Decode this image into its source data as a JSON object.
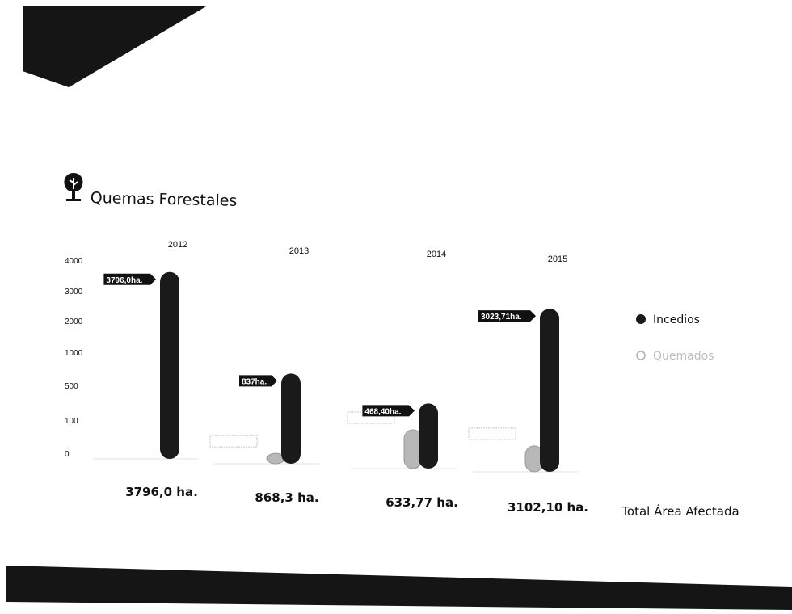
{
  "page": {
    "title": "",
    "chart_title": "Quemas Forestales",
    "tree_icon": "tree-icon",
    "colors": {
      "dark_band": "#151515",
      "background": "#ffffff"
    }
  },
  "chart_data": {
    "type": "bar",
    "title": "Quemas Forestales",
    "categories": [
      "2012",
      "2013",
      "2014",
      "2015"
    ],
    "y_ticks": [
      "4000",
      "3000",
      "2000",
      "1000",
      "500",
      "100",
      "0"
    ],
    "series": [
      {
        "name": "Incedios",
        "color": "#1a1a1a",
        "values": [
          3796.0,
          837,
          468.4,
          3023.71
        ],
        "labels": [
          "3796,0ha.",
          "837ha.",
          "468,40ha.",
          "3023,71ha."
        ]
      },
      {
        "name": "Quemados",
        "color": "#b8b8b8",
        "values": [
          0,
          31.3,
          165.37,
          78.39
        ],
        "labels": [
          "",
          "",
          "",
          ""
        ]
      }
    ],
    "totals": [
      "3796,0 ha.",
      "868,3 ha.",
      "633,77 ha.",
      "3102,10 ha."
    ],
    "totals_label": "Total Área Afectada",
    "legend_position": "right",
    "grid": false
  }
}
